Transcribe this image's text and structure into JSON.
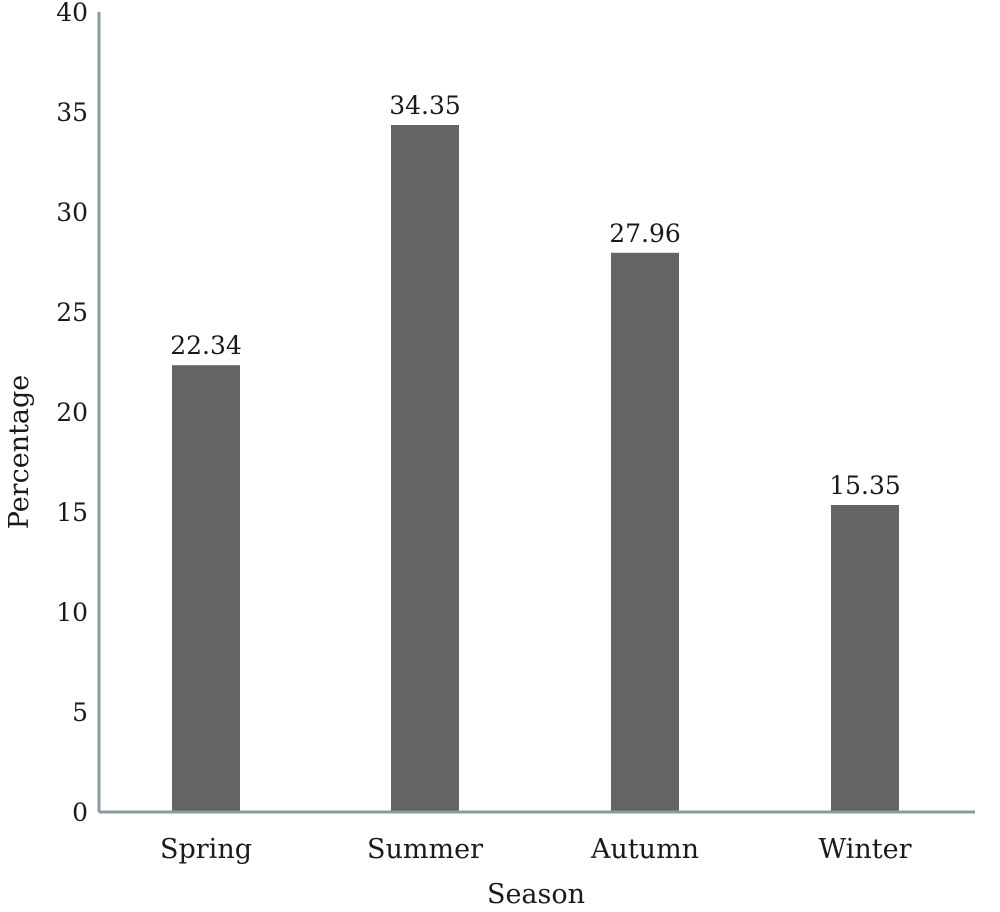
{
  "chart_data": {
    "type": "bar",
    "title": "",
    "xlabel": "Season",
    "ylabel": "Percentage",
    "categories": [
      "Spring",
      "Summer",
      "Autumn",
      "Winter"
    ],
    "values": [
      22.34,
      34.35,
      27.96,
      15.35
    ],
    "value_labels": [
      "22.34",
      "34.35",
      "27.96",
      "15.35"
    ],
    "ylim": [
      0,
      40
    ],
    "yticks": [
      0,
      5,
      10,
      15,
      20,
      25,
      30,
      35,
      40
    ],
    "grid": false,
    "legend": "none",
    "bar_color": "#646464",
    "axis_color": "#8a9a9e"
  }
}
